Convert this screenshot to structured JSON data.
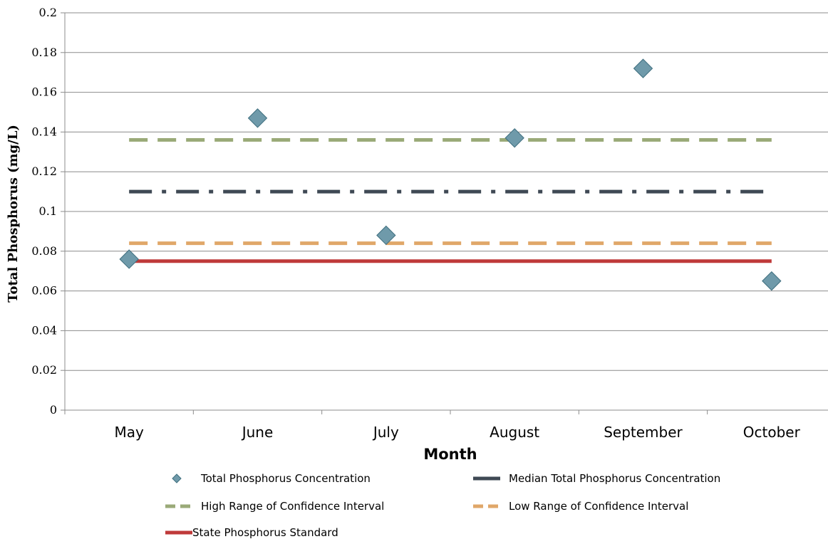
{
  "chart_data": {
    "type": "scatter",
    "categories": [
      "May",
      "June",
      "July",
      "August",
      "September",
      "October"
    ],
    "ylabel": "Total Phosphorus (mg/L)",
    "xlabel": "Month",
    "ylim": [
      0,
      0.2
    ],
    "yticks": [
      "0",
      "0.02",
      "0.04",
      "0.06",
      "0.08",
      "0.1",
      "0.12",
      "0.14",
      "0.16",
      "0.18",
      "0.2"
    ],
    "grid": "horizontal",
    "legend_position": "bottom",
    "series": [
      {
        "name": "Total Phosphorus Concentration",
        "kind": "points",
        "color": "#6f9aaa",
        "x": [
          "May",
          "June",
          "July",
          "August",
          "September",
          "October"
        ],
        "values": [
          0.076,
          0.147,
          0.088,
          0.137,
          0.172,
          0.065
        ]
      },
      {
        "name": "Median Total Phosphorus Concentration",
        "kind": "line",
        "style": "dash-dot",
        "color": "#3f4954",
        "value": 0.11
      },
      {
        "name": "High Range of Confidence Interval",
        "kind": "line",
        "style": "dashed",
        "color": "#9aaa78",
        "value": 0.136
      },
      {
        "name": "Low Range of Confidence Interval",
        "kind": "line",
        "style": "dashed",
        "color": "#e0a769",
        "value": 0.084
      },
      {
        "name": "State Phosphorus Standard",
        "kind": "line",
        "style": "solid",
        "color": "#bf3a3a",
        "value": 0.075
      }
    ]
  }
}
